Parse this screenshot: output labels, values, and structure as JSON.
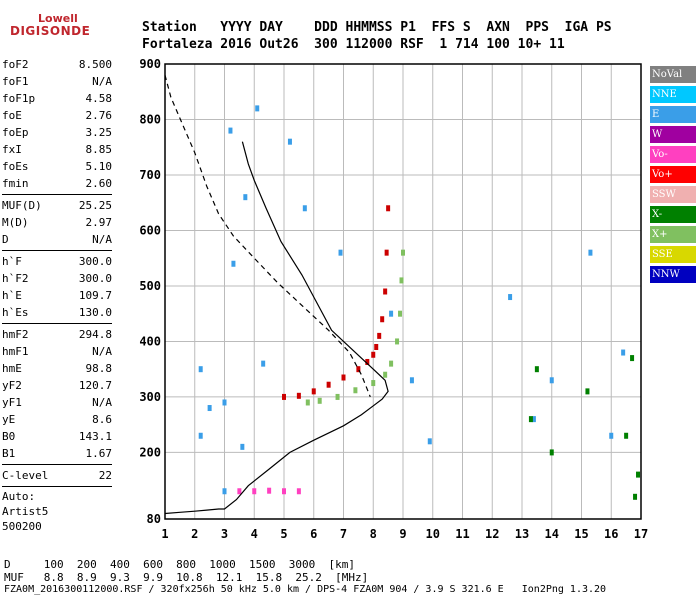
{
  "logo": {
    "line1": "Lowell",
    "line2": "DIGISONDE",
    "color": "#c0262d"
  },
  "header": {
    "labels": "Station   YYYY DAY    DDD HHMMSS P1  FFS S  AXN  PPS  IGA PS",
    "values": "Fortaleza 2016 Out26  300 112000 RSF  1 714 100 10+ 11"
  },
  "parameters": {
    "group1": [
      {
        "name": "foF2",
        "value": "8.500"
      },
      {
        "name": "foF1",
        "value": "N/A"
      },
      {
        "name": "foF1p",
        "value": "4.58"
      },
      {
        "name": "foE",
        "value": "2.76"
      },
      {
        "name": "foEp",
        "value": "3.25"
      },
      {
        "name": "fxI",
        "value": "8.85"
      },
      {
        "name": "foEs",
        "value": "5.10"
      },
      {
        "name": "fmin",
        "value": "2.60"
      }
    ],
    "group2": [
      {
        "name": "MUF(D)",
        "value": "25.25"
      },
      {
        "name": "M(D)",
        "value": "2.97"
      },
      {
        "name": "D",
        "value": "N/A"
      }
    ],
    "group3": [
      {
        "name": "h`F",
        "value": "300.0"
      },
      {
        "name": "h`F2",
        "value": "300.0"
      },
      {
        "name": "h`E",
        "value": "109.7"
      },
      {
        "name": "h`Es",
        "value": "130.0"
      }
    ],
    "group4": [
      {
        "name": "hmF2",
        "value": "294.8"
      },
      {
        "name": "hmF1",
        "value": "N/A"
      },
      {
        "name": "hmE",
        "value": "98.8"
      },
      {
        "name": "yF2",
        "value": "120.7"
      },
      {
        "name": "yF1",
        "value": "N/A"
      },
      {
        "name": "yE",
        "value": "8.6"
      },
      {
        "name": "B0",
        "value": "143.1"
      },
      {
        "name": "B1",
        "value": "1.67"
      }
    ],
    "clevel": {
      "name": "C-level",
      "value": "22"
    },
    "auto": [
      "Auto:",
      "Artist5",
      "500200"
    ]
  },
  "legend": [
    {
      "label": "NoVal",
      "color": "#808080"
    },
    {
      "label": "NNE",
      "color": "#00c8ff"
    },
    {
      "label": "E",
      "color": "#3a9ee8"
    },
    {
      "label": "W",
      "color": "#a000a0"
    },
    {
      "label": "Vo-",
      "color": "#ff40c0"
    },
    {
      "label": "Vo+",
      "color": "#ff0000"
    },
    {
      "label": "SSW",
      "color": "#f0b0b0"
    },
    {
      "label": "X-",
      "color": "#008000"
    },
    {
      "label": "X+",
      "color": "#80c060"
    },
    {
      "label": "SSE",
      "color": "#d8d800"
    },
    {
      "label": "NNW",
      "color": "#0000c0"
    }
  ],
  "chart_data": {
    "type": "scatter",
    "x_ticks": [
      "1",
      "2",
      "3",
      "4",
      "5",
      "6",
      "7",
      "8",
      "9",
      "10",
      "11",
      "12",
      "13",
      "14",
      "15",
      "16",
      "17"
    ],
    "y_ticks": [
      "80",
      "200",
      "300",
      "400",
      "500",
      "600",
      "700",
      "800",
      "900"
    ],
    "xlim": [
      1,
      17
    ],
    "ylim": [
      80,
      900
    ],
    "grid": true,
    "series": [
      {
        "name": "Vo+",
        "color": "#cc0000",
        "x": [
          5.0,
          5.5,
          6.0,
          6.5,
          7.0,
          7.5,
          7.8,
          8.0,
          8.1,
          8.2,
          8.3,
          8.4,
          8.45,
          8.5
        ],
        "y": [
          300,
          302,
          310,
          322,
          335,
          350,
          363,
          376,
          390,
          410,
          440,
          490,
          560,
          640
        ]
      },
      {
        "name": "X+",
        "color": "#80c060",
        "x": [
          5.8,
          6.2,
          6.8,
          7.4,
          8.0,
          8.4,
          8.6,
          8.8,
          8.9,
          8.95,
          9.0
        ],
        "y": [
          290,
          293,
          300,
          312,
          325,
          340,
          360,
          400,
          450,
          510,
          560
        ]
      },
      {
        "name": "Es",
        "color": "#ff40c0",
        "x": [
          3.5,
          4.0,
          4.5,
          5.0,
          5.5
        ],
        "y": [
          130,
          130,
          131,
          130,
          130
        ]
      },
      {
        "name": "E",
        "color": "#3a9ee8",
        "x": [
          2.2,
          2.2,
          2.5,
          3.0,
          3.0,
          3.2,
          3.3,
          3.6,
          3.7,
          4.1,
          4.3,
          5.2,
          5.7,
          6.9,
          8.6,
          9.3,
          9.9,
          12.6,
          13.4,
          14.0,
          15.3,
          16.0,
          16.4
        ],
        "y": [
          230,
          350,
          280,
          130,
          290,
          780,
          540,
          210,
          660,
          820,
          360,
          760,
          640,
          560,
          450,
          330,
          220,
          480,
          260,
          330,
          560,
          230,
          380
        ]
      },
      {
        "name": "X-",
        "color": "#008000",
        "x": [
          13.3,
          13.5,
          14.0,
          15.2,
          16.5,
          16.7,
          16.8,
          16.9
        ],
        "y": [
          260,
          350,
          200,
          310,
          230,
          370,
          120,
          160
        ]
      }
    ],
    "profile_x": [
      1.0,
      1.5,
      2.0,
      2.4,
      2.8,
      3.0,
      3.4,
      3.8,
      4.5,
      5.2,
      6.0,
      7.0,
      7.6,
      8.0,
      8.3,
      8.5,
      8.4,
      8.0,
      7.5,
      6.6,
      5.6,
      4.9,
      4.4,
      4.0,
      3.8,
      3.6
    ],
    "profile_y": [
      90,
      92,
      94,
      96,
      98,
      98,
      115,
      140,
      170,
      200,
      222,
      248,
      268,
      284,
      296,
      310,
      330,
      350,
      375,
      420,
      520,
      580,
      640,
      690,
      720,
      760
    ],
    "dashed_x": [
      1.0,
      1.2,
      1.6,
      2.0,
      2.4,
      2.8,
      3.3,
      4.0,
      4.8,
      5.6,
      6.5,
      7.2,
      7.6,
      7.9
    ],
    "dashed_y": [
      880,
      840,
      790,
      740,
      680,
      630,
      590,
      550,
      505,
      465,
      420,
      380,
      340,
      300
    ]
  },
  "bottom": {
    "d_row": "D     100  200  400  600  800  1000  1500  3000  [km]",
    "muf_row": "MUF   8.8  8.9  9.3  9.9  10.8  12.1  15.8  25.2  [MHz]"
  },
  "footer": "FZA0M_2016300112000.RSF / 320fx256h 50 kHz 5.0 km / DPS-4 FZA0M 904 / 3.9 S 321.6 E   Ion2Png 1.3.20"
}
